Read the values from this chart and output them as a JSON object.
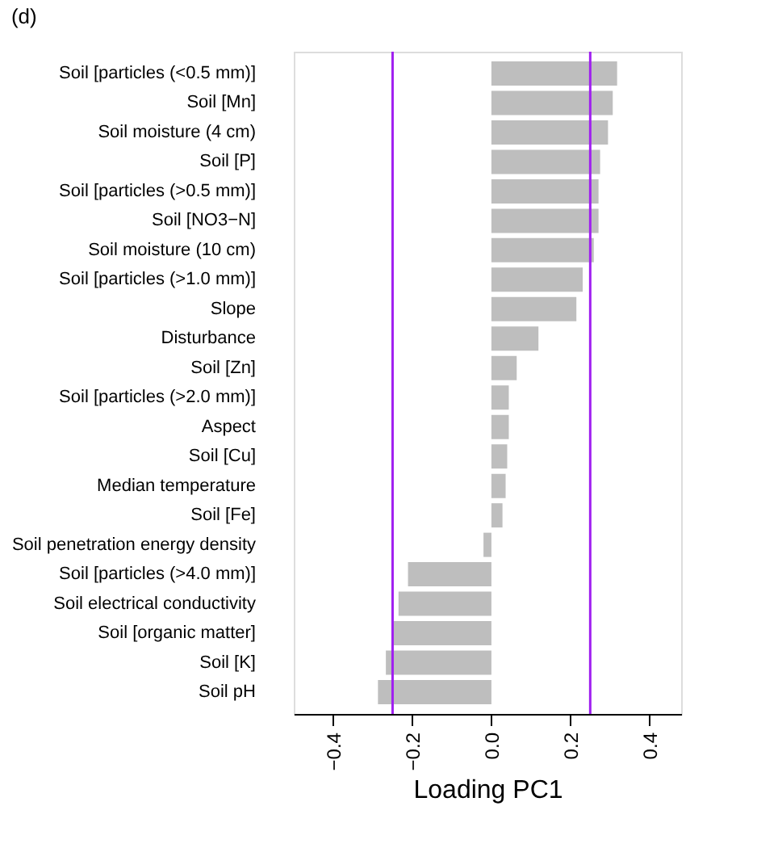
{
  "chart_data": {
    "type": "bar",
    "orientation": "horizontal",
    "title": "(d)",
    "xlabel": "Loading PC1",
    "categories": [
      "Soil [particles (<0.5 mm)]",
      "Soil [Mn]",
      "Soil moisture (4 cm)",
      "Soil [P]",
      "Soil [particles (>0.5 mm)]",
      "Soil [NO3−N]",
      "Soil moisture (10 cm)",
      "Soil [particles (>1.0 mm)]",
      "Slope",
      "Disturbance",
      "Soil [Zn]",
      "Soil [particles (>2.0 mm)]",
      "Aspect",
      "Soil [Cu]",
      "Median temperature",
      "Soil [Fe]",
      "Soil penetration energy density",
      "Soil [particles (>4.0 mm)]",
      "Soil electrical conductivity",
      "Soil [organic matter]",
      "Soil [K]",
      "Soil pH"
    ],
    "values": [
      0.318,
      0.307,
      0.295,
      0.275,
      0.271,
      0.271,
      0.259,
      0.231,
      0.215,
      0.119,
      0.064,
      0.044,
      0.044,
      0.04,
      0.036,
      0.028,
      -0.02,
      -0.211,
      -0.235,
      -0.249,
      -0.267,
      -0.287
    ],
    "color": "#bebebe",
    "xlim": [
      -0.5,
      0.48
    ],
    "xticks": [
      {
        "value": -0.4,
        "label": "−0.4"
      },
      {
        "value": -0.2,
        "label": "−0.2"
      },
      {
        "value": 0,
        "label": "0.0"
      },
      {
        "value": 0.2,
        "label": "0.2"
      },
      {
        "value": 0.4,
        "label": "0.4"
      }
    ],
    "ref_lines": [
      {
        "axis": "x",
        "value": -0.25,
        "color": "#a020f0"
      },
      {
        "axis": "x",
        "value": 0.25,
        "color": "#a020f0"
      }
    ],
    "grid": false
  }
}
